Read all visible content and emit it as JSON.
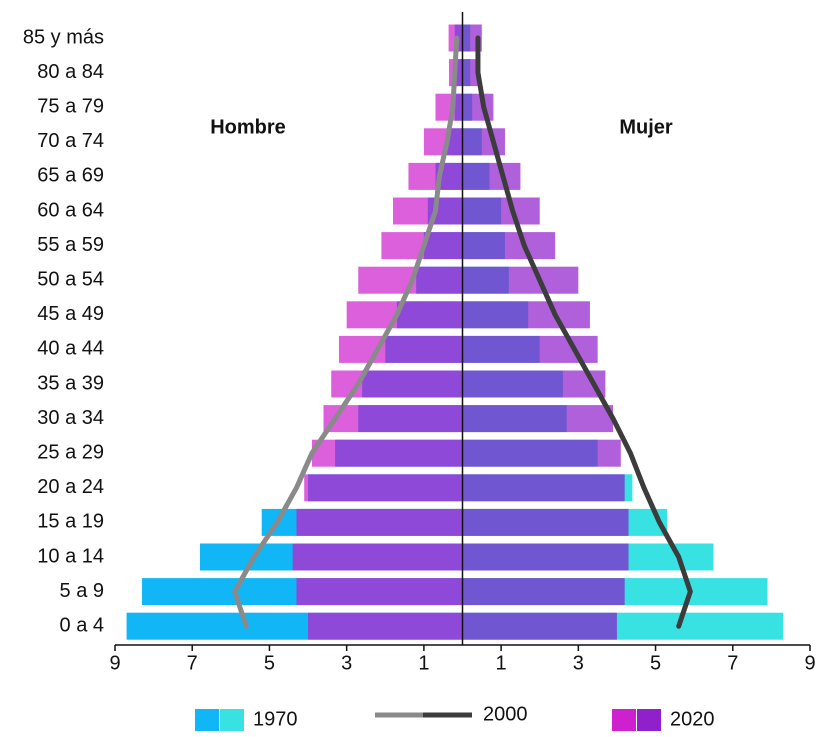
{
  "chart_data": {
    "type": "pyramid",
    "annotations": [
      "Hombre",
      "Mujer"
    ],
    "categories": [
      "85 y más",
      "80 a 84",
      "75 a 79",
      "70 a 74",
      "65 a 69",
      "60 a 64",
      "55 a 59",
      "50 a 54",
      "45 a 49",
      "40 a 44",
      "35 a 39",
      "30 a 34",
      "25 a 29",
      "20 a 24",
      "15 a 19",
      "10 a 14",
      "5 a 9",
      "0 a 4"
    ],
    "series": [
      {
        "name": "1970",
        "kind": "bar",
        "colors": [
          "#10b6f5",
          "#38e2e2"
        ],
        "opacity": 1,
        "values_male": [
          0.2,
          0.2,
          0.2,
          0.4,
          0.7,
          0.9,
          1.0,
          1.2,
          1.7,
          2.0,
          2.6,
          2.7,
          3.3,
          4.0,
          5.2,
          6.8,
          8.3,
          8.7
        ],
        "values_female": [
          0.2,
          0.2,
          0.25,
          0.5,
          0.7,
          1.0,
          1.1,
          1.2,
          1.7,
          2.0,
          2.6,
          2.7,
          3.5,
          4.4,
          5.3,
          6.5,
          7.9,
          8.3
        ]
      },
      {
        "name": "2000",
        "kind": "line",
        "colors": [
          "#8a8a8a",
          "#3c3c3c"
        ],
        "values_male": [
          0.15,
          0.2,
          0.25,
          0.4,
          0.6,
          0.7,
          1.0,
          1.3,
          1.7,
          2.2,
          2.7,
          3.3,
          3.9,
          4.3,
          4.8,
          5.4,
          5.9,
          5.6
        ],
        "values_female": [
          0.4,
          0.4,
          0.55,
          0.8,
          1.05,
          1.3,
          1.6,
          2.0,
          2.4,
          2.9,
          3.4,
          3.9,
          4.35,
          4.7,
          5.1,
          5.6,
          5.9,
          5.6
        ]
      },
      {
        "name": "2020",
        "kind": "bar",
        "colors": [
          "#cc14cc",
          "#8a14c8"
        ],
        "opacity": 0.68,
        "values_male": [
          0.36,
          0.35,
          0.7,
          1.0,
          1.4,
          1.8,
          2.1,
          2.7,
          3.0,
          3.2,
          3.4,
          3.6,
          3.9,
          4.1,
          4.3,
          4.4,
          4.3,
          4.0
        ],
        "values_female": [
          0.5,
          0.45,
          0.8,
          1.1,
          1.5,
          2.0,
          2.4,
          3.0,
          3.3,
          3.5,
          3.7,
          3.9,
          4.1,
          4.2,
          4.3,
          4.3,
          4.2,
          4.0
        ]
      }
    ],
    "xlim": [
      -9,
      9
    ],
    "xticks": [
      {
        "value": -9,
        "label": "9"
      },
      {
        "value": -7,
        "label": "7"
      },
      {
        "value": -5,
        "label": "5"
      },
      {
        "value": -3,
        "label": "3"
      },
      {
        "value": -1,
        "label": "1"
      },
      1,
      3,
      5,
      7,
      9
    ]
  }
}
